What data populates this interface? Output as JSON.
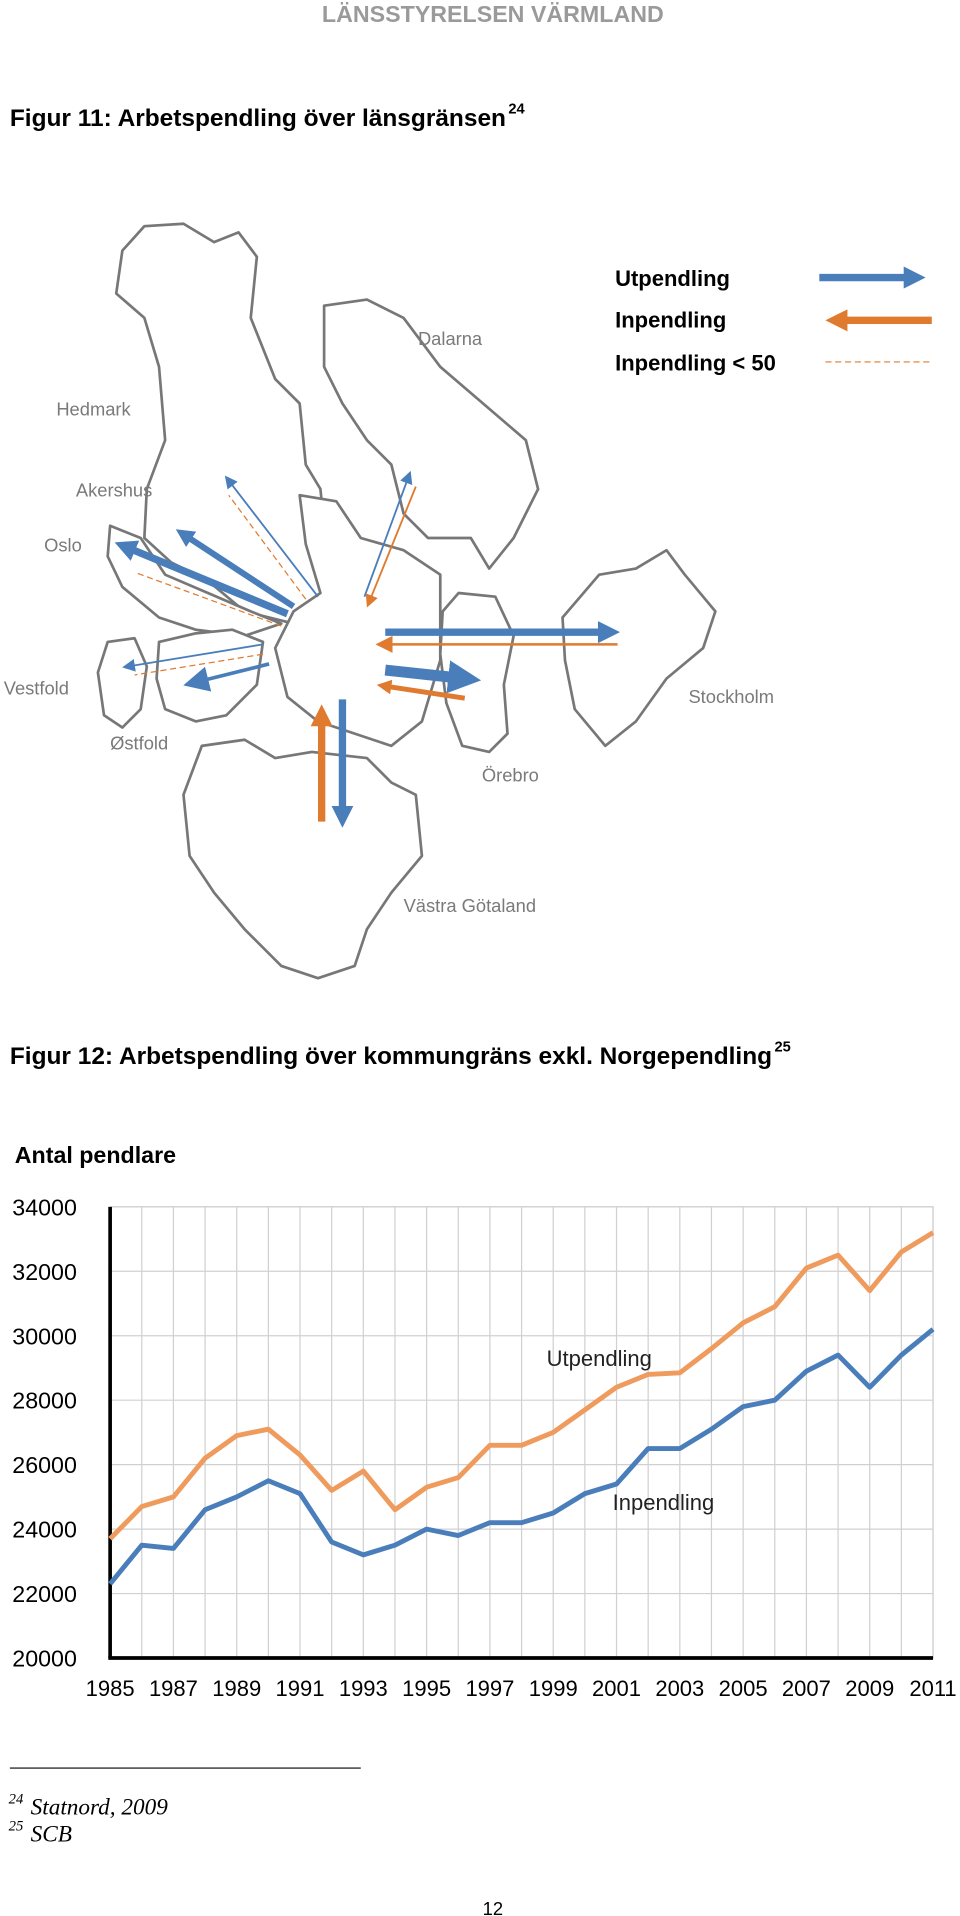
{
  "header": {
    "title": "LÄNSSTYRELSEN VÄRMLAND"
  },
  "figures": [
    {
      "title": "Figur 11: Arbetspendling över länsgränsen",
      "note_ref": "24"
    },
    {
      "title": "Figur 12: Arbetspendling över kommungräns exkl. Norgependling",
      "note_ref": "25"
    }
  ],
  "map": {
    "legend": [
      "Utpendling",
      "Inpendling",
      "Inpendling < 50"
    ],
    "regions": [
      "Hedmark",
      "Dalarna",
      "Akershus",
      "Oslo",
      "Vestfold",
      "Østfold",
      "Stockholm",
      "Örebro",
      "Västra Götaland"
    ]
  },
  "chart_data": {
    "type": "line",
    "y_label": "Antal pendlare",
    "x": [
      1985,
      1986,
      1987,
      1988,
      1989,
      1990,
      1991,
      1992,
      1993,
      1994,
      1995,
      1996,
      1997,
      1998,
      1999,
      2000,
      2001,
      2002,
      2003,
      2004,
      2005,
      2006,
      2007,
      2008,
      2009,
      2010,
      2011
    ],
    "xlim": [
      1985,
      2011
    ],
    "xticks": [
      1985,
      1987,
      1989,
      1991,
      1993,
      1995,
      1997,
      1999,
      2001,
      2003,
      2005,
      2007,
      2009,
      2011
    ],
    "ylim": [
      20000,
      34000
    ],
    "yticks": [
      20000,
      22000,
      24000,
      26000,
      28000,
      30000,
      32000,
      34000
    ],
    "grid": true,
    "series": [
      {
        "name": "Utpendling",
        "color": "#ef9b5e",
        "values": [
          23700,
          24700,
          25000,
          26200,
          26900,
          27100,
          26300,
          25200,
          25800,
          24600,
          25300,
          25600,
          26600,
          26600,
          27000,
          27700,
          28400,
          28800,
          28850,
          29600,
          30400,
          30900,
          32100,
          32500,
          31400,
          32600,
          33200
        ]
      },
      {
        "name": "Inpendling",
        "color": "#4a7ebb",
        "values": [
          22300,
          23500,
          23400,
          24600,
          25000,
          25500,
          25100,
          23600,
          23200,
          23500,
          24000,
          23800,
          24200,
          24200,
          24500,
          25100,
          25400,
          26500,
          26500,
          27100,
          27800,
          28000,
          28900,
          29400,
          28400,
          29400,
          30200
        ]
      }
    ]
  },
  "footnotes": [
    {
      "ref": "24",
      "text": "Statnord, 2009"
    },
    {
      "ref": "25",
      "text": "SCB"
    }
  ],
  "page_number": "12"
}
